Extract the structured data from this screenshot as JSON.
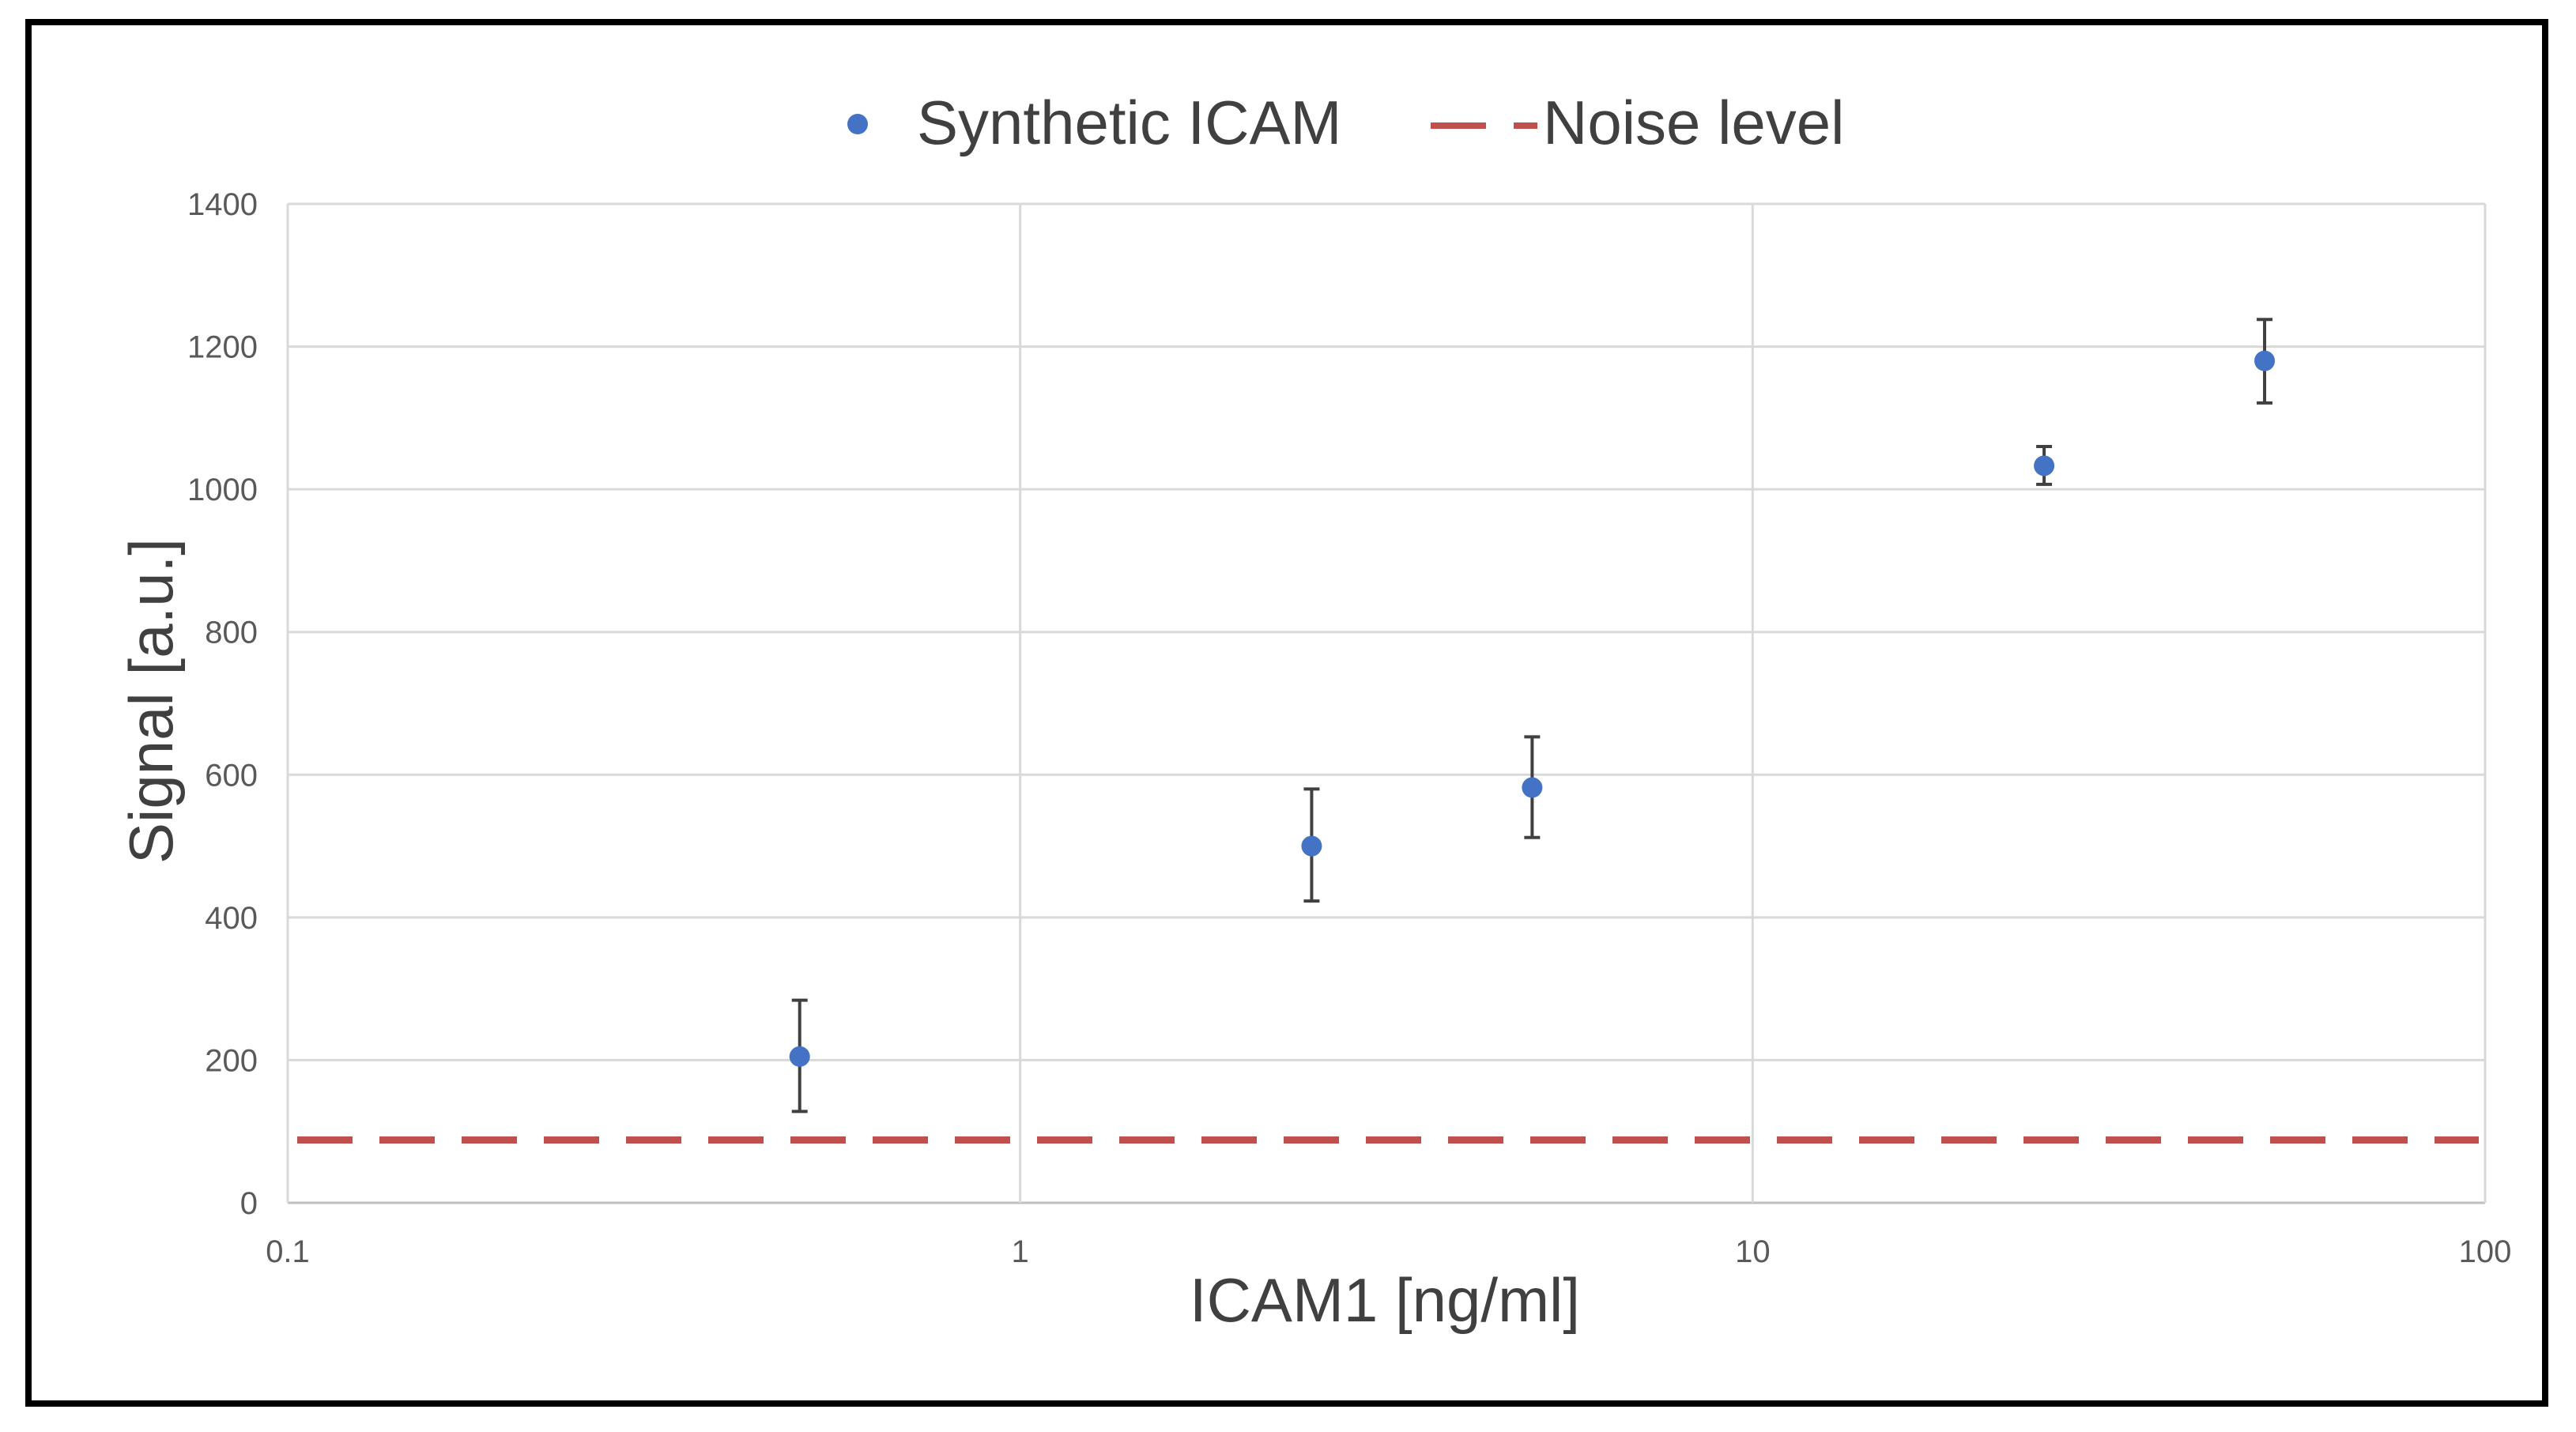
{
  "chart_data": {
    "type": "scatter",
    "x_scale": "log",
    "xlabel": "ICAM1 [ng/ml]",
    "ylabel": "Signal [a.u.]",
    "xlim": [
      0.1,
      100
    ],
    "ylim": [
      0,
      1400
    ],
    "x_ticks": [
      0.1,
      1,
      10,
      100
    ],
    "x_tick_labels": [
      "0.1",
      "1",
      "10",
      "100"
    ],
    "y_ticks": [
      0,
      200,
      400,
      600,
      800,
      1000,
      1200,
      1400
    ],
    "y_tick_labels": [
      "0",
      "200",
      "400",
      "600",
      "800",
      "1000",
      "1200",
      "1400"
    ],
    "grid": true,
    "legend_position": "top-center",
    "series": [
      {
        "name": "Synthetic ICAM",
        "kind": "points",
        "color": "#4472C4",
        "x": [
          0.5,
          2.5,
          5,
          25,
          50
        ],
        "y": [
          205,
          500,
          582,
          1033,
          1180
        ],
        "error_low": [
          128,
          423,
          512,
          1007,
          1121
        ],
        "error_high": [
          284,
          580,
          653,
          1060,
          1238
        ]
      },
      {
        "name": "Noise level",
        "kind": "hline",
        "color": "#C0504D",
        "y": 88
      }
    ]
  }
}
